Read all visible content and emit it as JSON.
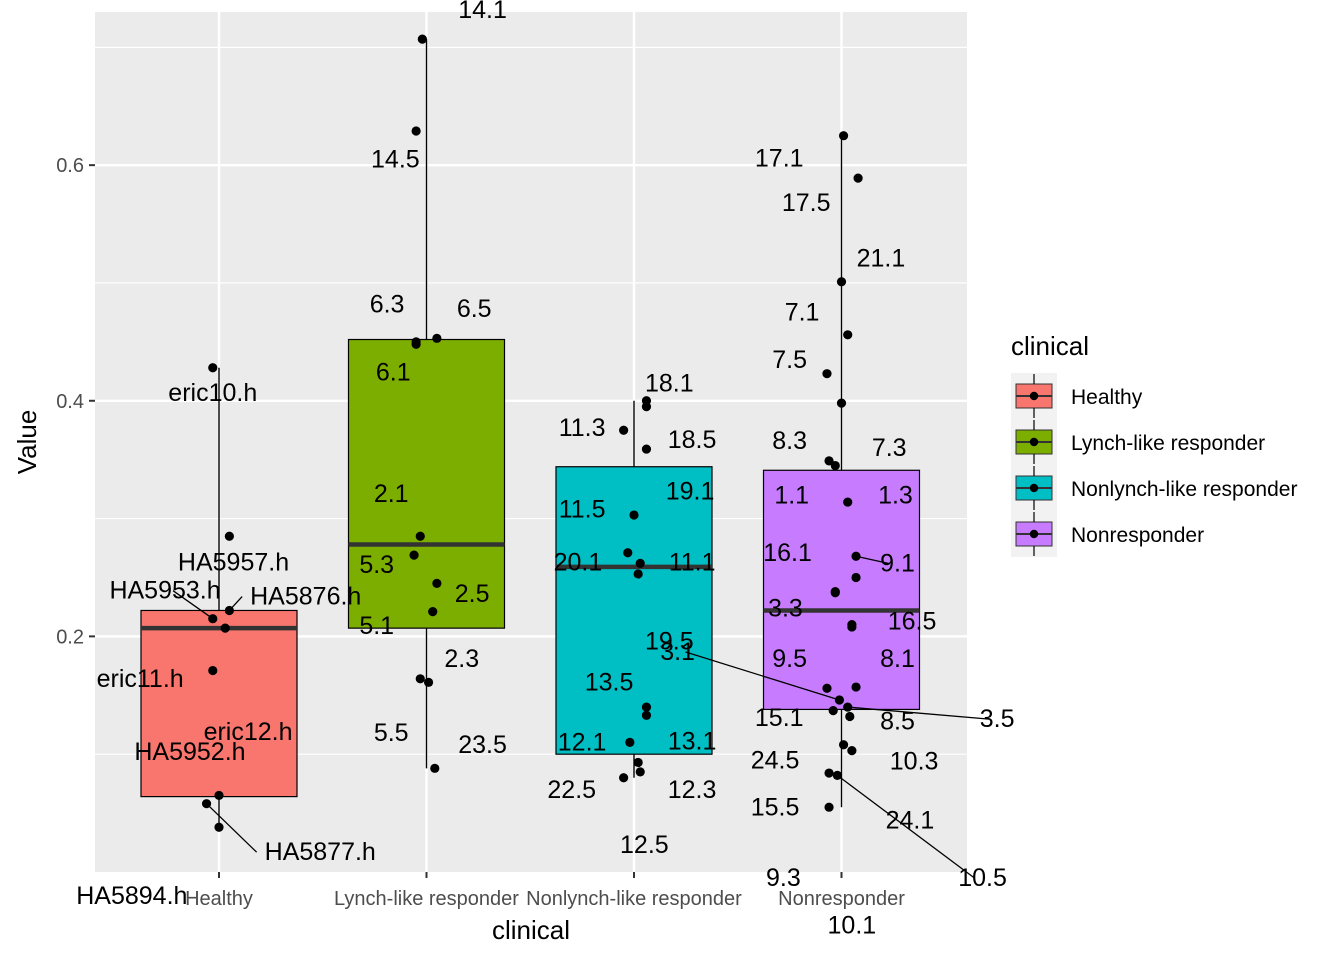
{
  "chart_data": {
    "type": "box",
    "xlabel": "clinical",
    "ylabel": "Value",
    "ylim": [
      0.0,
      0.73
    ],
    "yticks": [
      0.2,
      0.4,
      0.6
    ],
    "ytick_labels": [
      "0.2",
      "0.4",
      "0.6"
    ],
    "grid": true,
    "legend": {
      "title": "clinical",
      "placement": "right",
      "entries": [
        "Healthy",
        "Lynch-like responder",
        "Nonlynch-like responder",
        "Nonresponder"
      ]
    },
    "categories": [
      "Healthy",
      "Lynch-like responder",
      "Nonlynch-like responder",
      "Nonresponder"
    ],
    "series": [
      {
        "name": "Healthy",
        "color": "#F8766D",
        "box": {
          "q1": 0.064,
          "median": 0.207,
          "q3": 0.222,
          "whisker_low": 0.038,
          "whisker_high": 0.428
        },
        "points": [
          {
            "label": "eric10.h",
            "value": 0.428,
            "jitter": -0.03,
            "lx": -0.03,
            "ly": 0.4,
            "lanchor": "middle"
          },
          {
            "label": "HA5957.h",
            "value": 0.285,
            "jitter": 0.05,
            "lx": 0.07,
            "ly": 0.256,
            "lanchor": "middle"
          },
          {
            "label": "HA5876.h",
            "value": 0.222,
            "jitter": 0.05,
            "lx": 0.15,
            "ly": 0.227,
            "lanchor": "start",
            "line": true
          },
          {
            "label": "HA5953.h",
            "value": 0.215,
            "jitter": -0.03,
            "lx": -0.26,
            "ly": 0.232,
            "lanchor": "middle",
            "line": true
          },
          {
            "label": "eric11.h",
            "value": 0.207,
            "jitter": 0.03,
            "lx": -0.38,
            "ly": 0.157,
            "lanchor": "middle"
          },
          {
            "label": "eric12.h",
            "value": 0.171,
            "jitter": -0.03,
            "lx": 0.14,
            "ly": 0.112,
            "lanchor": "middle"
          },
          {
            "label": "HA5952.h",
            "value": 0.065,
            "jitter": 0.0,
            "lx": -0.14,
            "ly": 0.095,
            "lanchor": "middle"
          },
          {
            "label": "HA5877.h",
            "value": 0.058,
            "jitter": -0.06,
            "lx": 0.22,
            "ly": 0.01,
            "lanchor": "start",
            "line": true
          },
          {
            "label": "HA5894.h",
            "value": 0.038,
            "jitter": 0.0,
            "lx": -0.42,
            "ly": -0.027,
            "lanchor": "middle"
          }
        ]
      },
      {
        "name": "Lynch-like responder",
        "color": "#7CAE00",
        "box": {
          "q1": 0.207,
          "median": 0.278,
          "q3": 0.452,
          "whisker_low": 0.088,
          "whisker_high": 0.707
        },
        "points": [
          {
            "label": "14.1",
            "value": 0.707,
            "jitter": -0.02,
            "lx": 0.27,
            "ly": 0.725,
            "lanchor": "middle"
          },
          {
            "label": "14.5",
            "value": 0.629,
            "jitter": -0.05,
            "lx": -0.15,
            "ly": 0.598,
            "lanchor": "middle"
          },
          {
            "label": "6.3",
            "value": 0.45,
            "jitter": -0.05,
            "lx": -0.19,
            "ly": 0.475,
            "lanchor": "middle"
          },
          {
            "label": "6.5",
            "value": 0.453,
            "jitter": 0.05,
            "lx": 0.23,
            "ly": 0.471,
            "lanchor": "middle"
          },
          {
            "label": "6.1",
            "value": 0.448,
            "jitter": -0.05,
            "lx": -0.16,
            "ly": 0.417,
            "lanchor": "middle"
          },
          {
            "label": "2.1",
            "value": 0.285,
            "jitter": -0.03,
            "lx": -0.17,
            "ly": 0.314,
            "lanchor": "middle"
          },
          {
            "label": "5.3",
            "value": 0.269,
            "jitter": -0.06,
            "lx": -0.24,
            "ly": 0.254,
            "lanchor": "middle"
          },
          {
            "label": "2.5",
            "value": 0.245,
            "jitter": 0.05,
            "lx": 0.22,
            "ly": 0.229,
            "lanchor": "middle"
          },
          {
            "label": "5.1",
            "value": 0.221,
            "jitter": 0.03,
            "lx": -0.24,
            "ly": 0.202,
            "lanchor": "middle"
          },
          {
            "label": "2.3",
            "value": 0.164,
            "jitter": -0.03,
            "lx": 0.17,
            "ly": 0.174,
            "lanchor": "middle"
          },
          {
            "label": "5.5",
            "value": 0.161,
            "jitter": 0.01,
            "lx": -0.17,
            "ly": 0.111,
            "lanchor": "middle"
          },
          {
            "label": "23.5",
            "value": 0.088,
            "jitter": 0.04,
            "lx": 0.27,
            "ly": 0.101,
            "lanchor": "middle"
          }
        ]
      },
      {
        "name": "Nonlynch-like responder",
        "color": "#00BFC4",
        "box": {
          "q1": 0.1,
          "median": 0.259,
          "q3": 0.344,
          "whisker_low": 0.08,
          "whisker_high": 0.4
        },
        "points": [
          {
            "label": "18.1",
            "value": 0.4,
            "jitter": 0.06,
            "lx": 0.17,
            "ly": 0.408,
            "lanchor": "middle"
          },
          {
            "label": "18.5",
            "value": 0.395,
            "jitter": 0.06,
            "lx": 0.28,
            "ly": 0.36,
            "lanchor": "middle"
          },
          {
            "label": "11.3",
            "value": 0.375,
            "jitter": -0.05,
            "lx": -0.25,
            "ly": 0.37,
            "lanchor": "middle"
          },
          {
            "label": "19.1",
            "value": 0.359,
            "jitter": 0.06,
            "lx": 0.27,
            "ly": 0.316,
            "lanchor": "middle"
          },
          {
            "label": "11.5",
            "value": 0.303,
            "jitter": 0.0,
            "lx": -0.25,
            "ly": 0.301,
            "lanchor": "middle"
          },
          {
            "label": "20.1",
            "value": 0.271,
            "jitter": -0.03,
            "lx": -0.27,
            "ly": 0.256,
            "lanchor": "middle"
          },
          {
            "label": "11.1",
            "value": 0.262,
            "jitter": 0.03,
            "lx": 0.28,
            "ly": 0.256,
            "lanchor": "middle"
          },
          {
            "label": "19.5",
            "value": 0.253,
            "jitter": 0.02,
            "lx": 0.17,
            "ly": 0.189,
            "lanchor": "middle"
          },
          {
            "label": "13.5",
            "value": 0.14,
            "jitter": 0.06,
            "lx": -0.12,
            "ly": 0.154,
            "lanchor": "middle"
          },
          {
            "label": "13.1",
            "value": 0.133,
            "jitter": 0.06,
            "lx": 0.28,
            "ly": 0.104,
            "lanchor": "middle"
          },
          {
            "label": "12.1",
            "value": 0.11,
            "jitter": -0.02,
            "lx": -0.25,
            "ly": 0.103,
            "lanchor": "middle"
          },
          {
            "label": "12.3",
            "value": 0.093,
            "jitter": 0.02,
            "lx": 0.28,
            "ly": 0.063,
            "lanchor": "middle"
          },
          {
            "label": "22.5",
            "value": 0.08,
            "jitter": -0.05,
            "lx": -0.3,
            "ly": 0.063,
            "lanchor": "middle"
          },
          {
            "label": "12.5",
            "value": 0.085,
            "jitter": 0.03,
            "lx": 0.05,
            "ly": 0.016,
            "lanchor": "middle"
          }
        ]
      },
      {
        "name": "Nonresponder",
        "color": "#C77CFF",
        "box": {
          "q1": 0.138,
          "median": 0.222,
          "q3": 0.341,
          "whisker_low": 0.055,
          "whisker_high": 0.625
        },
        "points": [
          {
            "label": "17.1",
            "value": 0.625,
            "jitter": 0.01,
            "lx": -0.3,
            "ly": 0.599,
            "lanchor": "middle"
          },
          {
            "label": "17.5",
            "value": 0.589,
            "jitter": 0.08,
            "lx": -0.17,
            "ly": 0.561,
            "lanchor": "middle"
          },
          {
            "label": "21.1",
            "value": 0.501,
            "jitter": 0.0,
            "lx": 0.19,
            "ly": 0.514,
            "lanchor": "middle"
          },
          {
            "label": "7.1",
            "value": 0.456,
            "jitter": 0.03,
            "lx": -0.19,
            "ly": 0.468,
            "lanchor": "middle"
          },
          {
            "label": "7.5",
            "value": 0.423,
            "jitter": -0.07,
            "lx": -0.25,
            "ly": 0.428,
            "lanchor": "middle"
          },
          {
            "label": "8.3",
            "value": 0.398,
            "jitter": 0.0,
            "lx": -0.25,
            "ly": 0.359,
            "lanchor": "middle"
          },
          {
            "label": "7.3",
            "value": 0.349,
            "jitter": -0.06,
            "lx": 0.23,
            "ly": 0.353,
            "lanchor": "middle"
          },
          {
            "label": "1.1",
            "value": 0.345,
            "jitter": -0.03,
            "lx": -0.24,
            "ly": 0.313,
            "lanchor": "middle"
          },
          {
            "label": "1.3",
            "value": 0.314,
            "jitter": 0.03,
            "lx": 0.26,
            "ly": 0.313,
            "lanchor": "middle"
          },
          {
            "label": "16.1",
            "value": 0.237,
            "jitter": -0.03,
            "lx": -0.26,
            "ly": 0.264,
            "lanchor": "middle"
          },
          {
            "label": "9.1",
            "value": 0.268,
            "jitter": 0.07,
            "lx": 0.27,
            "ly": 0.255,
            "lanchor": "middle",
            "line": true
          },
          {
            "label": "3.3",
            "value": 0.238,
            "jitter": -0.03,
            "lx": -0.27,
            "ly": 0.217,
            "lanchor": "middle"
          },
          {
            "label": "16.5",
            "value": 0.25,
            "jitter": 0.07,
            "lx": 0.34,
            "ly": 0.206,
            "lanchor": "middle"
          },
          {
            "label": "9.5",
            "value": 0.21,
            "jitter": 0.05,
            "lx": -0.25,
            "ly": 0.174,
            "lanchor": "middle"
          },
          {
            "label": "8.1",
            "value": 0.208,
            "jitter": 0.05,
            "lx": 0.27,
            "ly": 0.174,
            "lanchor": "middle"
          },
          {
            "label": "3.1",
            "value": 0.146,
            "jitter": -0.01,
            "lx": -0.79,
            "ly": 0.18,
            "lanchor": "middle",
            "line": true
          },
          {
            "label": "15.1",
            "value": 0.156,
            "jitter": -0.07,
            "lx": -0.3,
            "ly": 0.124,
            "lanchor": "middle"
          },
          {
            "label": "8.5",
            "value": 0.157,
            "jitter": 0.07,
            "lx": 0.27,
            "ly": 0.121,
            "lanchor": "middle"
          },
          {
            "label": "3.5",
            "value": 0.14,
            "jitter": 0.03,
            "lx": 0.75,
            "ly": 0.123,
            "lanchor": "middle",
            "line": true
          },
          {
            "label": "24.5",
            "value": 0.137,
            "jitter": -0.04,
            "lx": -0.32,
            "ly": 0.088,
            "lanchor": "middle"
          },
          {
            "label": "10.3",
            "value": 0.132,
            "jitter": 0.04,
            "lx": 0.35,
            "ly": 0.087,
            "lanchor": "middle"
          },
          {
            "label": "15.5",
            "value": 0.108,
            "jitter": 0.01,
            "lx": -0.32,
            "ly": 0.048,
            "lanchor": "middle"
          },
          {
            "label": "24.1",
            "value": 0.103,
            "jitter": 0.05,
            "lx": 0.33,
            "ly": 0.037,
            "lanchor": "middle"
          },
          {
            "label": "9.3",
            "value": 0.084,
            "jitter": -0.06,
            "lx": -0.28,
            "ly": -0.012,
            "lanchor": "middle"
          },
          {
            "label": "10.5",
            "value": 0.082,
            "jitter": -0.02,
            "lx": 0.68,
            "ly": -0.012,
            "lanchor": "middle",
            "line": true
          },
          {
            "label": "10.1",
            "value": 0.055,
            "jitter": -0.06,
            "lx": 0.05,
            "ly": -0.052,
            "lanchor": "middle"
          }
        ]
      }
    ]
  }
}
